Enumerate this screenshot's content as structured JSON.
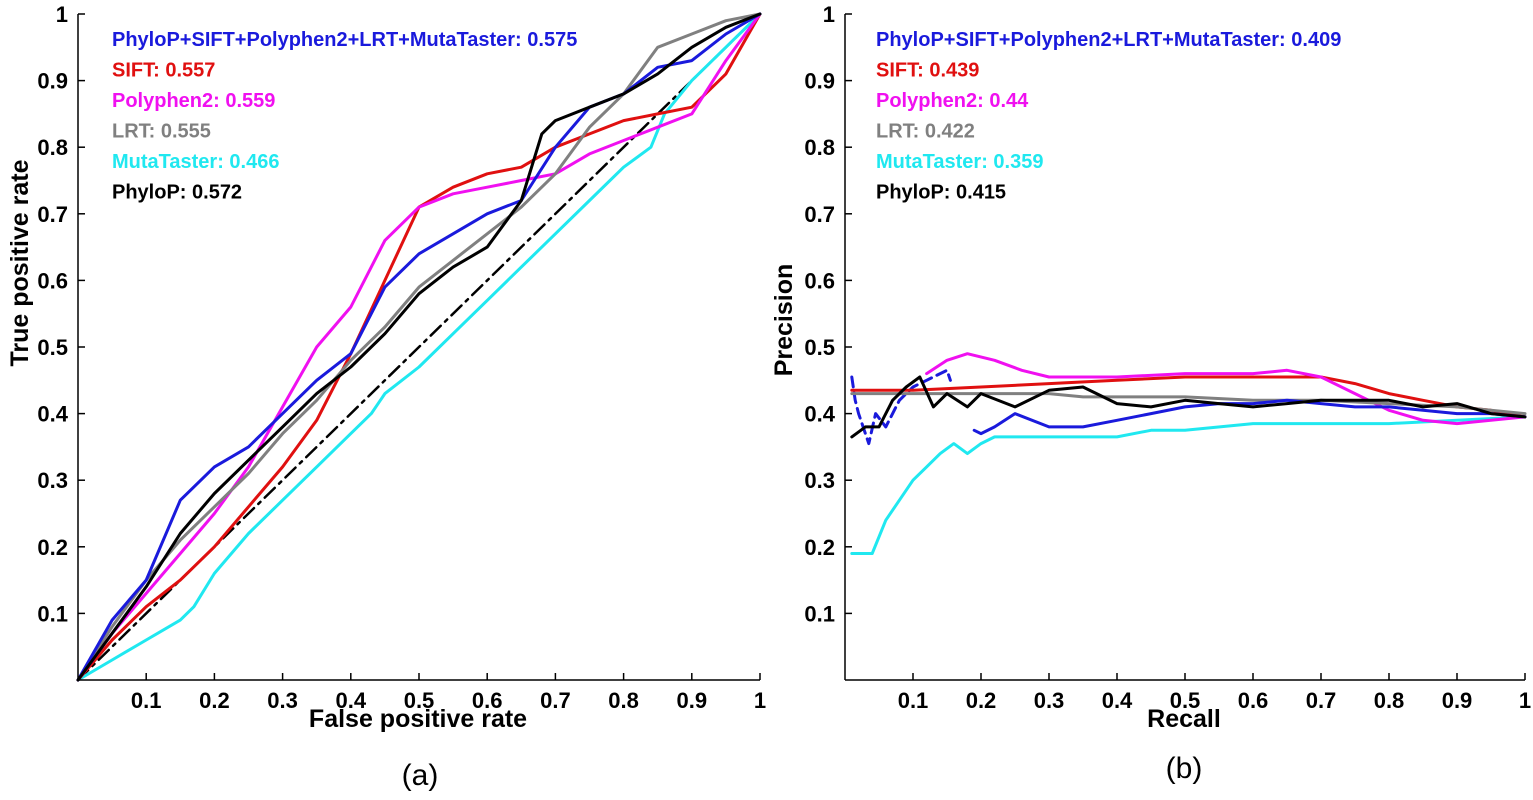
{
  "chart_data": [
    {
      "type": "line",
      "caption": "(a)",
      "xlabel": "False positive rate",
      "ylabel": "True positive rate",
      "xlim": [
        0,
        1
      ],
      "ylim": [
        0,
        1
      ],
      "xticks": [
        "0.1",
        "0.2",
        "0.3",
        "0.4",
        "0.5",
        "0.6",
        "0.7",
        "0.8",
        "0.9",
        "1"
      ],
      "yticks": [
        "0.1",
        "0.2",
        "0.3",
        "0.4",
        "0.5",
        "0.6",
        "0.7",
        "0.8",
        "0.9",
        "1"
      ],
      "grid": false,
      "legend_position": "top-left",
      "legend": [
        {
          "label": "PhyloP+SIFT+Polyphen2+LRT+MutaTaster: 0.575",
          "color": "#1a1adc"
        },
        {
          "label": "SIFT: 0.557",
          "color": "#e01010"
        },
        {
          "label": "Polyphen2: 0.559",
          "color": "#f010f0"
        },
        {
          "label": "LRT: 0.555",
          "color": "#808080"
        },
        {
          "label": "MutaTaster: 0.466",
          "color": "#20e8f0"
        },
        {
          "label": "PhyloP: 0.572",
          "color": "#000000"
        }
      ],
      "series": [
        {
          "color": "#000000",
          "dash": "dashdot",
          "x": [
            0,
            1
          ],
          "y": [
            0,
            1
          ]
        },
        {
          "color": "#20e8f0",
          "x": [
            0,
            0.05,
            0.1,
            0.15,
            0.17,
            0.2,
            0.25,
            0.3,
            0.35,
            0.4,
            0.43,
            0.45,
            0.5,
            0.55,
            0.6,
            0.65,
            0.7,
            0.75,
            0.8,
            0.84,
            0.86,
            0.9,
            0.93,
            0.96,
            1.0
          ],
          "y": [
            0,
            0.03,
            0.06,
            0.09,
            0.11,
            0.16,
            0.22,
            0.27,
            0.32,
            0.37,
            0.4,
            0.43,
            0.47,
            0.52,
            0.57,
            0.62,
            0.67,
            0.72,
            0.77,
            0.8,
            0.85,
            0.9,
            0.93,
            0.96,
            1.0
          ]
        },
        {
          "color": "#e01010",
          "x": [
            0,
            0.05,
            0.1,
            0.15,
            0.2,
            0.25,
            0.3,
            0.35,
            0.4,
            0.45,
            0.5,
            0.55,
            0.6,
            0.65,
            0.7,
            0.75,
            0.8,
            0.85,
            0.9,
            0.95,
            1.0
          ],
          "y": [
            0,
            0.06,
            0.11,
            0.15,
            0.2,
            0.26,
            0.32,
            0.39,
            0.49,
            0.6,
            0.71,
            0.74,
            0.76,
            0.77,
            0.8,
            0.82,
            0.84,
            0.85,
            0.86,
            0.91,
            1.0
          ]
        },
        {
          "color": "#f010f0",
          "x": [
            0,
            0.05,
            0.1,
            0.15,
            0.2,
            0.25,
            0.3,
            0.35,
            0.4,
            0.45,
            0.5,
            0.55,
            0.6,
            0.65,
            0.7,
            0.75,
            0.8,
            0.85,
            0.9,
            0.95,
            1.0
          ],
          "y": [
            0,
            0.07,
            0.13,
            0.19,
            0.25,
            0.32,
            0.41,
            0.5,
            0.56,
            0.66,
            0.71,
            0.73,
            0.74,
            0.75,
            0.76,
            0.79,
            0.81,
            0.83,
            0.85,
            0.93,
            1.0
          ]
        },
        {
          "color": "#808080",
          "x": [
            0,
            0.05,
            0.1,
            0.15,
            0.2,
            0.25,
            0.3,
            0.35,
            0.4,
            0.45,
            0.5,
            0.55,
            0.6,
            0.65,
            0.7,
            0.75,
            0.8,
            0.85,
            0.9,
            0.95,
            1.0
          ],
          "y": [
            0,
            0.08,
            0.15,
            0.21,
            0.26,
            0.31,
            0.37,
            0.42,
            0.48,
            0.53,
            0.59,
            0.63,
            0.67,
            0.71,
            0.76,
            0.83,
            0.88,
            0.95,
            0.97,
            0.99,
            1.0
          ]
        },
        {
          "color": "#1a1adc",
          "x": [
            0,
            0.05,
            0.1,
            0.15,
            0.2,
            0.25,
            0.3,
            0.35,
            0.4,
            0.45,
            0.5,
            0.55,
            0.6,
            0.65,
            0.7,
            0.75,
            0.8,
            0.85,
            0.9,
            0.95,
            1.0
          ],
          "y": [
            0,
            0.09,
            0.15,
            0.27,
            0.32,
            0.35,
            0.4,
            0.45,
            0.49,
            0.59,
            0.64,
            0.67,
            0.7,
            0.72,
            0.8,
            0.86,
            0.88,
            0.92,
            0.93,
            0.97,
            1.0
          ]
        },
        {
          "color": "#000000",
          "x": [
            0,
            0.05,
            0.1,
            0.15,
            0.2,
            0.25,
            0.3,
            0.35,
            0.4,
            0.45,
            0.5,
            0.55,
            0.6,
            0.65,
            0.68,
            0.7,
            0.75,
            0.8,
            0.85,
            0.9,
            0.95,
            1.0
          ],
          "y": [
            0,
            0.07,
            0.14,
            0.22,
            0.28,
            0.33,
            0.38,
            0.43,
            0.47,
            0.52,
            0.58,
            0.62,
            0.65,
            0.72,
            0.82,
            0.84,
            0.86,
            0.88,
            0.91,
            0.95,
            0.98,
            1.0
          ]
        }
      ]
    },
    {
      "type": "line",
      "caption": "(b)",
      "xlabel": "Recall",
      "ylabel": "Precision",
      "xlim": [
        0,
        1
      ],
      "ylim": [
        0,
        1
      ],
      "xticks": [
        "0.1",
        "0.2",
        "0.3",
        "0.4",
        "0.5",
        "0.6",
        "0.7",
        "0.8",
        "0.9",
        "1"
      ],
      "yticks": [
        "0.1",
        "0.2",
        "0.3",
        "0.4",
        "0.5",
        "0.6",
        "0.7",
        "0.8",
        "0.9",
        "1"
      ],
      "grid": false,
      "legend_position": "top-left",
      "legend": [
        {
          "label": "PhyloP+SIFT+Polyphen2+LRT+MutaTaster: 0.409",
          "color": "#1a1adc"
        },
        {
          "label": "SIFT: 0.439",
          "color": "#e01010"
        },
        {
          "label": "Polyphen2: 0.44",
          "color": "#f010f0"
        },
        {
          "label": "LRT: 0.422",
          "color": "#808080"
        },
        {
          "label": "MutaTaster: 0.359",
          "color": "#20e8f0"
        },
        {
          "label": "PhyloP: 0.415",
          "color": "#000000"
        }
      ],
      "series": [
        {
          "color": "#1a1adc",
          "dash": "dashed",
          "x": [
            0.01,
            0.015,
            0.02,
            0.03,
            0.035,
            0.045,
            0.06,
            0.08,
            0.1,
            0.12,
            0.14,
            0.15,
            0.155
          ],
          "y": [
            0.455,
            0.42,
            0.4,
            0.37,
            0.355,
            0.4,
            0.38,
            0.42,
            0.44,
            0.45,
            0.46,
            0.465,
            0.45
          ]
        },
        {
          "color": "#20e8f0",
          "x": [
            0.01,
            0.04,
            0.06,
            0.08,
            0.1,
            0.12,
            0.14,
            0.16,
            0.18,
            0.2,
            0.22,
            0.3,
            0.4,
            0.45,
            0.5,
            0.6,
            0.7,
            0.8,
            0.9,
            1.0
          ],
          "y": [
            0.19,
            0.19,
            0.24,
            0.27,
            0.3,
            0.32,
            0.34,
            0.355,
            0.34,
            0.355,
            0.365,
            0.365,
            0.365,
            0.375,
            0.375,
            0.385,
            0.385,
            0.385,
            0.39,
            0.395
          ]
        },
        {
          "color": "#e01010",
          "x": [
            0.01,
            0.1,
            0.2,
            0.3,
            0.4,
            0.5,
            0.6,
            0.7,
            0.75,
            0.8,
            0.85,
            0.9,
            0.95,
            1.0
          ],
          "y": [
            0.435,
            0.435,
            0.44,
            0.445,
            0.45,
            0.455,
            0.455,
            0.455,
            0.445,
            0.43,
            0.42,
            0.41,
            0.405,
            0.395
          ]
        },
        {
          "color": "#f010f0",
          "x": [
            0.12,
            0.15,
            0.18,
            0.22,
            0.26,
            0.3,
            0.35,
            0.4,
            0.5,
            0.6,
            0.65,
            0.7,
            0.75,
            0.8,
            0.85,
            0.9,
            1.0
          ],
          "y": [
            0.46,
            0.48,
            0.49,
            0.48,
            0.465,
            0.455,
            0.455,
            0.455,
            0.46,
            0.46,
            0.465,
            0.455,
            0.43,
            0.405,
            0.39,
            0.385,
            0.395
          ]
        },
        {
          "color": "#808080",
          "x": [
            0.01,
            0.1,
            0.2,
            0.3,
            0.35,
            0.4,
            0.5,
            0.6,
            0.7,
            0.8,
            0.9,
            1.0
          ],
          "y": [
            0.43,
            0.43,
            0.43,
            0.43,
            0.425,
            0.425,
            0.425,
            0.42,
            0.42,
            0.415,
            0.41,
            0.4
          ]
        },
        {
          "color": "#1a1adc",
          "x": [
            0.19,
            0.2,
            0.22,
            0.25,
            0.3,
            0.35,
            0.4,
            0.45,
            0.5,
            0.55,
            0.6,
            0.65,
            0.7,
            0.75,
            0.8,
            0.85,
            0.9,
            0.95,
            1.0
          ],
          "y": [
            0.375,
            0.37,
            0.38,
            0.4,
            0.38,
            0.38,
            0.39,
            0.4,
            0.41,
            0.415,
            0.415,
            0.42,
            0.415,
            0.41,
            0.41,
            0.405,
            0.4,
            0.4,
            0.395
          ]
        },
        {
          "color": "#000000",
          "x": [
            0.01,
            0.03,
            0.05,
            0.07,
            0.09,
            0.11,
            0.13,
            0.15,
            0.18,
            0.2,
            0.25,
            0.3,
            0.35,
            0.4,
            0.45,
            0.5,
            0.55,
            0.6,
            0.65,
            0.7,
            0.75,
            0.8,
            0.85,
            0.9,
            0.95,
            1.0
          ],
          "y": [
            0.365,
            0.38,
            0.38,
            0.42,
            0.44,
            0.455,
            0.41,
            0.43,
            0.41,
            0.43,
            0.41,
            0.435,
            0.44,
            0.415,
            0.41,
            0.42,
            0.415,
            0.41,
            0.415,
            0.42,
            0.42,
            0.42,
            0.41,
            0.415,
            0.4,
            0.395
          ]
        }
      ]
    }
  ]
}
